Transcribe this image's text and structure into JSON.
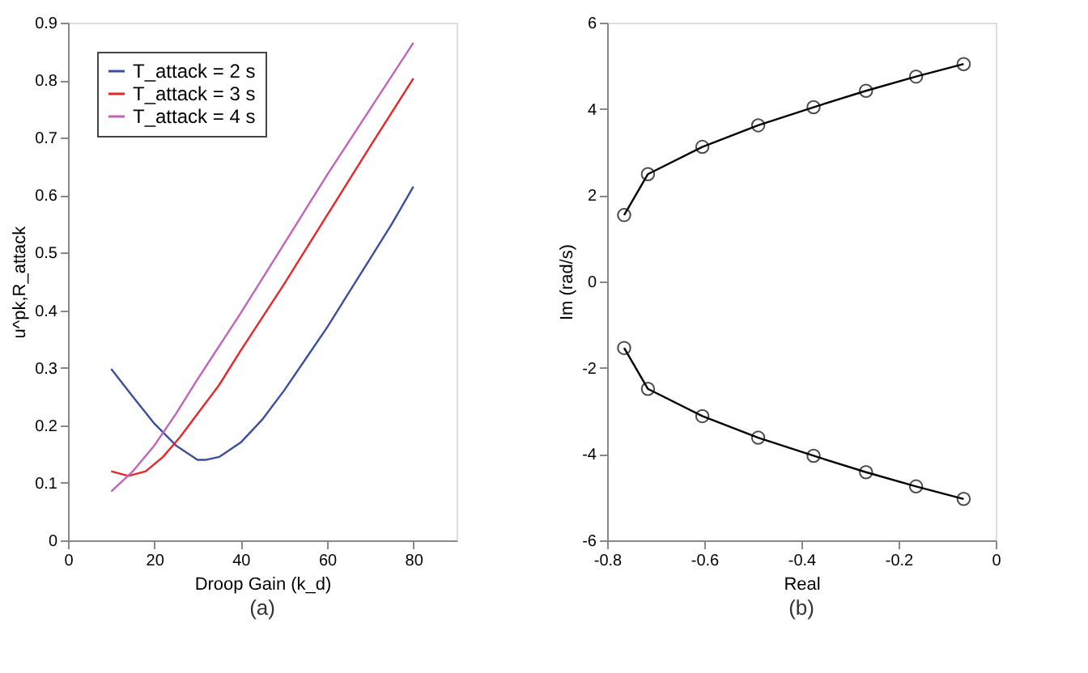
{
  "chart_data": [
    {
      "type": "line",
      "xlabel": "Droop Gain (k_d)",
      "ylabel": "u^pk,R_attack",
      "annotations": [
        "(a)"
      ],
      "xlim": [
        0,
        90
      ],
      "xticks": [
        0,
        20,
        40,
        60,
        80
      ],
      "ylim": [
        0,
        0.9
      ],
      "yticks": [
        0,
        0.1,
        0.2,
        0.3,
        0.4,
        0.5,
        0.6,
        0.7,
        0.8,
        0.9
      ],
      "grid": false,
      "legend": "top left",
      "marker": "none",
      "line_style": "solid",
      "series": [
        {
          "name": "T_attack = 2 s",
          "color": "#3b4fa0",
          "x": [
            10,
            15,
            20,
            25,
            30,
            32,
            35,
            40,
            45,
            50,
            55,
            60,
            65,
            70,
            75,
            80
          ],
          "values": [
            0.298,
            0.25,
            0.203,
            0.165,
            0.14,
            0.14,
            0.145,
            0.17,
            0.21,
            0.26,
            0.315,
            0.37,
            0.43,
            0.49,
            0.55,
            0.615
          ]
        },
        {
          "name": "T_attack = 3 s",
          "color": "#e8262a",
          "x": [
            10,
            14,
            18,
            22,
            26,
            30,
            35,
            40,
            50,
            60,
            70,
            80
          ],
          "values": [
            0.12,
            0.112,
            0.12,
            0.145,
            0.18,
            0.22,
            0.27,
            0.33,
            0.445,
            0.565,
            0.685,
            0.803
          ]
        },
        {
          "name": "T_attack = 4 s",
          "color": "#c462b8",
          "x": [
            10,
            15,
            20,
            25,
            30,
            40,
            50,
            60,
            70,
            80
          ],
          "values": [
            0.085,
            0.12,
            0.165,
            0.22,
            0.28,
            0.395,
            0.515,
            0.635,
            0.75,
            0.865
          ]
        }
      ]
    },
    {
      "type": "line",
      "xlabel": "Real",
      "ylabel": "Im (rad/s)",
      "annotations": [
        "(b)"
      ],
      "xlim": [
        -0.8,
        0
      ],
      "xticks": [
        -0.8,
        -0.6,
        -0.4,
        -0.2,
        0
      ],
      "ylim": [
        -6,
        6
      ],
      "yticks": [
        -6,
        -4,
        -2,
        0,
        2,
        4,
        6
      ],
      "grid": false,
      "legend": false,
      "marker": "circle",
      "line_style": "solid",
      "series": [
        {
          "color": "#000000",
          "x": [
            -0.765,
            -0.716,
            -0.604,
            -0.489,
            -0.375,
            -0.267,
            -0.164,
            -0.066
          ],
          "values": [
            1.54,
            2.49,
            3.12,
            3.62,
            4.04,
            4.42,
            4.75,
            5.04
          ]
        },
        {
          "color": "#000000",
          "x": [
            -0.765,
            -0.716,
            -0.604,
            -0.489,
            -0.375,
            -0.267,
            -0.164,
            -0.066
          ],
          "values": [
            -1.54,
            -2.49,
            -3.12,
            -3.62,
            -4.04,
            -4.42,
            -4.75,
            -5.04
          ]
        }
      ]
    }
  ]
}
